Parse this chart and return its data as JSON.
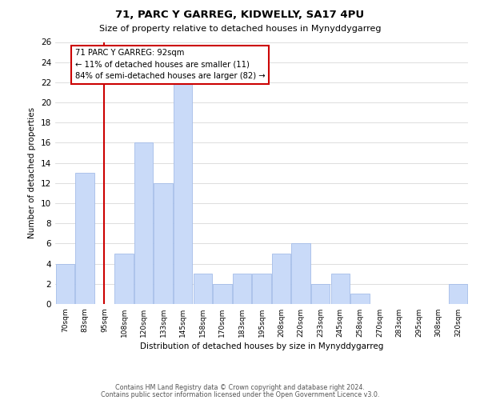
{
  "title": "71, PARC Y GARREG, KIDWELLY, SA17 4PU",
  "subtitle": "Size of property relative to detached houses in Mynyddygarreg",
  "xlabel": "Distribution of detached houses by size in Mynyddygarreg",
  "ylabel": "Number of detached properties",
  "bar_labels": [
    "70sqm",
    "83sqm",
    "95sqm",
    "108sqm",
    "120sqm",
    "133sqm",
    "145sqm",
    "158sqm",
    "170sqm",
    "183sqm",
    "195sqm",
    "208sqm",
    "220sqm",
    "233sqm",
    "245sqm",
    "258sqm",
    "270sqm",
    "283sqm",
    "295sqm",
    "308sqm",
    "320sqm"
  ],
  "bar_heights": [
    4,
    13,
    0,
    5,
    16,
    12,
    22,
    3,
    2,
    3,
    3,
    5,
    6,
    2,
    3,
    1,
    0,
    0,
    0,
    0,
    2
  ],
  "bar_color": "#c9daf8",
  "bar_edge_color": "#a4bde8",
  "vline_x": 2,
  "vline_color": "#cc0000",
  "annotation_box_text": "71 PARC Y GARREG: 92sqm\n← 11% of detached houses are smaller (11)\n84% of semi-detached houses are larger (82) →",
  "ylim": [
    0,
    26
  ],
  "ytick_max": 26,
  "ytick_step": 2,
  "footer_line1": "Contains HM Land Registry data © Crown copyright and database right 2024.",
  "footer_line2": "Contains public sector information licensed under the Open Government Licence v3.0.",
  "background_color": "#ffffff",
  "grid_color": "#d8d8d8"
}
